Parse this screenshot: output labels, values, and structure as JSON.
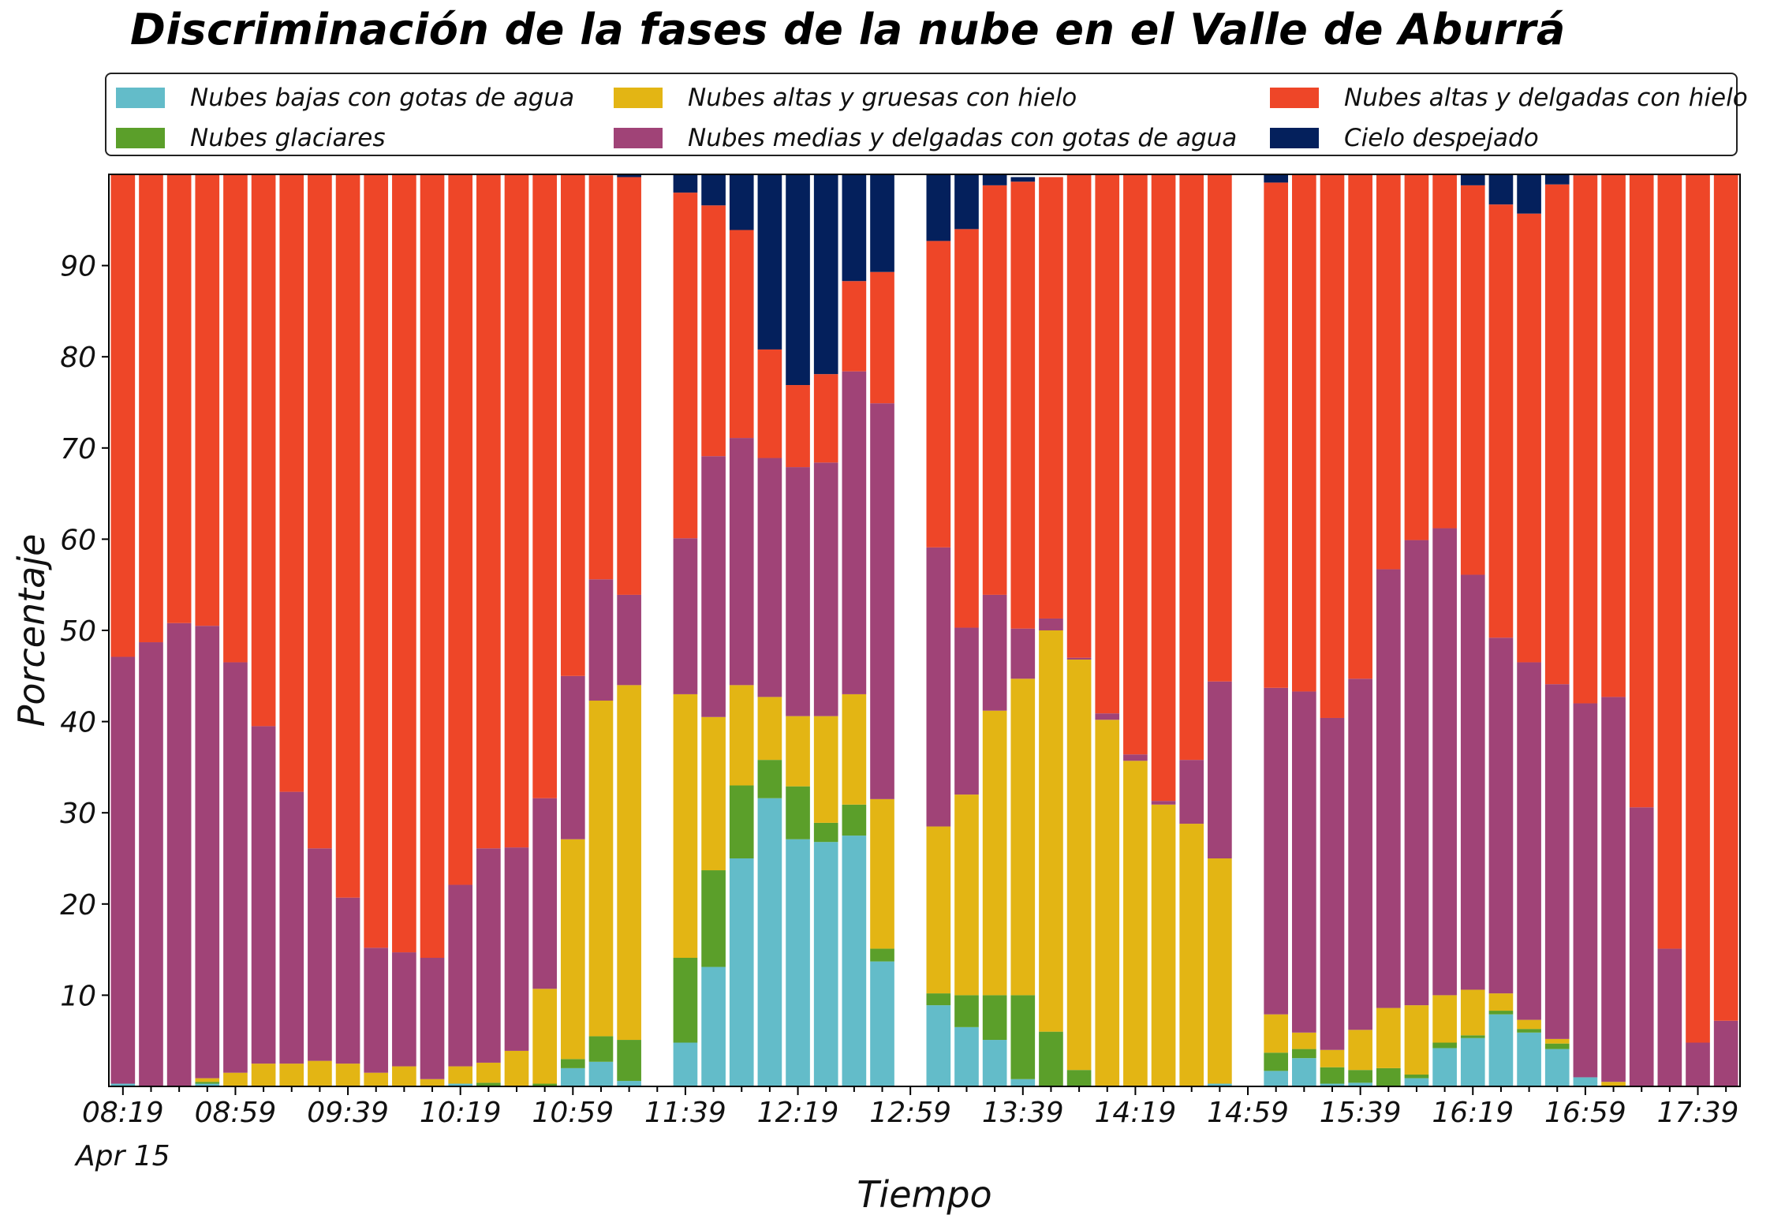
{
  "chart_data": {
    "type": "bar",
    "stacked": true,
    "title": "Discriminación de la fases de la nube en el Valle de Aburrá",
    "xlabel": "Tiempo",
    "ylabel": "Porcentaje",
    "ylim": [
      0,
      100
    ],
    "y_ticks": [
      10,
      20,
      30,
      40,
      50,
      60,
      70,
      80,
      90
    ],
    "x_tick_labels": [
      "08:19",
      "08:59",
      "09:39",
      "10:19",
      "10:59",
      "11:39",
      "12:19",
      "12:59",
      "13:39",
      "14:19",
      "14:59",
      "15:39",
      "16:19",
      "16:59",
      "17:39"
    ],
    "x_date_label": "Apr 15",
    "legend_position": "top, 3 columns",
    "grid": false,
    "categories": [
      "08:19",
      "08:29",
      "08:39",
      "08:49",
      "08:59",
      "09:09",
      "09:19",
      "09:29",
      "09:39",
      "09:49",
      "09:59",
      "10:09",
      "10:19",
      "10:29",
      "10:39",
      "10:49",
      "10:59",
      "11:09",
      "11:19",
      "11:29",
      "11:39",
      "11:49",
      "11:59",
      "12:09",
      "12:19",
      "12:29",
      "12:39",
      "12:49",
      "12:59",
      "13:09",
      "13:19",
      "13:29",
      "13:39",
      "13:49",
      "13:59",
      "14:09",
      "14:19",
      "14:29",
      "14:39",
      "14:49",
      "14:59",
      "15:09",
      "15:19",
      "15:29",
      "15:39",
      "15:49",
      "15:59",
      "16:09",
      "16:19",
      "16:29",
      "16:39",
      "16:49",
      "16:59",
      "17:09",
      "17:19",
      "17:29",
      "17:39",
      "17:49"
    ],
    "series": [
      {
        "name": "Nubes bajas con gotas de agua",
        "color": "#63bcc9",
        "values": [
          0.3,
          0,
          0,
          0.3,
          0,
          0,
          0,
          0,
          0,
          0,
          0,
          0,
          0.3,
          0,
          0,
          0,
          2.0,
          2.7,
          0.6,
          null,
          4.8,
          13.1,
          25.0,
          31.6,
          27.1,
          26.8,
          27.5,
          13.7,
          null,
          8.9,
          6.5,
          5.1,
          0.8,
          0,
          0,
          0,
          0,
          0,
          0,
          0.3,
          null,
          1.7,
          3.1,
          0.3,
          0.4,
          0,
          0.9,
          4.2,
          5.3,
          7.9,
          5.9,
          4.1,
          1.0,
          0,
          0,
          0,
          0,
          0
        ]
      },
      {
        "name": "Nubes glaciares",
        "color": "#5b9f2a",
        "values": [
          0,
          0,
          0,
          0.2,
          0,
          0,
          0,
          0,
          0,
          0,
          0,
          0,
          0,
          0.4,
          0,
          0.3,
          1.0,
          2.8,
          4.5,
          null,
          9.3,
          10.6,
          8.0,
          4.2,
          5.8,
          2.1,
          3.4,
          1.4,
          null,
          1.3,
          3.5,
          4.9,
          9.2,
          6.0,
          1.8,
          0,
          0,
          0,
          0,
          0,
          null,
          2.0,
          1.0,
          1.8,
          1.4,
          2.0,
          0.4,
          0.6,
          0.3,
          0.4,
          0.4,
          0.6,
          0,
          0,
          0,
          0,
          0,
          0
        ]
      },
      {
        "name": "Nubes altas y gruesas con hielo",
        "color": "#e3b514",
        "values": [
          0,
          0,
          0,
          0.4,
          1.5,
          2.5,
          2.5,
          2.8,
          2.5,
          1.5,
          2.2,
          0.8,
          1.9,
          2.2,
          3.9,
          10.4,
          24.1,
          36.8,
          38.9,
          null,
          28.9,
          16.8,
          11.0,
          6.9,
          7.7,
          11.7,
          12.1,
          16.4,
          null,
          18.3,
          22.0,
          31.2,
          34.7,
          44.0,
          45.0,
          40.2,
          35.7,
          30.9,
          28.8,
          24.7,
          null,
          4.2,
          1.8,
          1.9,
          4.4,
          6.6,
          7.6,
          5.2,
          5.0,
          1.9,
          1.0,
          0.5,
          0,
          0.5,
          0,
          0,
          0,
          0
        ]
      },
      {
        "name": "Nubes medias y delgadas con gotas de agua",
        "color": "#a04377",
        "values": [
          46.8,
          48.7,
          50.8,
          49.6,
          45.0,
          37.0,
          29.8,
          23.3,
          18.2,
          13.7,
          12.5,
          13.3,
          19.9,
          23.5,
          22.3,
          20.9,
          17.9,
          13.3,
          9.9,
          null,
          17.1,
          28.6,
          27.1,
          26.2,
          27.3,
          27.8,
          35.4,
          43.4,
          null,
          30.6,
          18.3,
          12.7,
          5.5,
          1.3,
          0.2,
          0.7,
          0.7,
          0.4,
          7.0,
          19.4,
          null,
          35.8,
          37.4,
          36.4,
          38.5,
          48.1,
          51.0,
          51.2,
          45.5,
          39.0,
          39.2,
          38.9,
          41.0,
          42.2,
          30.6,
          15.1,
          4.8,
          7.2
        ]
      },
      {
        "name": "Nubes altas y delgadas con hielo",
        "color": "#ee4628",
        "values": [
          52.9,
          51.3,
          49.2,
          49.5,
          53.5,
          60.5,
          67.7,
          73.9,
          79.3,
          84.8,
          85.3,
          85.9,
          77.9,
          73.9,
          73.8,
          68.4,
          55.0,
          44.3,
          45.8,
          null,
          37.9,
          27.5,
          22.8,
          11.9,
          9.0,
          9.7,
          9.9,
          14.4,
          null,
          33.6,
          43.7,
          44.9,
          49.0,
          48.4,
          53.0,
          59.1,
          63.6,
          68.7,
          64.2,
          55.6,
          null,
          55.4,
          56.7,
          59.6,
          55.3,
          43.3,
          40.1,
          38.8,
          42.7,
          47.5,
          49.2,
          54.8,
          57.9,
          57.3,
          69.4,
          84.9,
          95.2,
          92.8
        ]
      },
      {
        "name": "Cielo despejado",
        "color": "#04205c",
        "values": [
          0,
          0,
          0,
          0,
          0,
          0,
          0,
          0,
          0,
          0,
          0,
          0,
          0,
          0,
          0,
          0,
          0,
          0,
          0.3,
          null,
          2.0,
          3.4,
          6.1,
          19.2,
          23.1,
          21.9,
          11.7,
          10.7,
          null,
          7.3,
          6.0,
          1.2,
          0.5,
          0,
          0,
          0,
          0,
          0,
          0,
          0,
          null,
          1.0,
          0,
          0,
          0,
          0,
          0,
          0,
          1.2,
          3.3,
          4.3,
          1.1,
          0.1,
          0,
          0,
          0,
          0,
          0
        ]
      }
    ]
  }
}
